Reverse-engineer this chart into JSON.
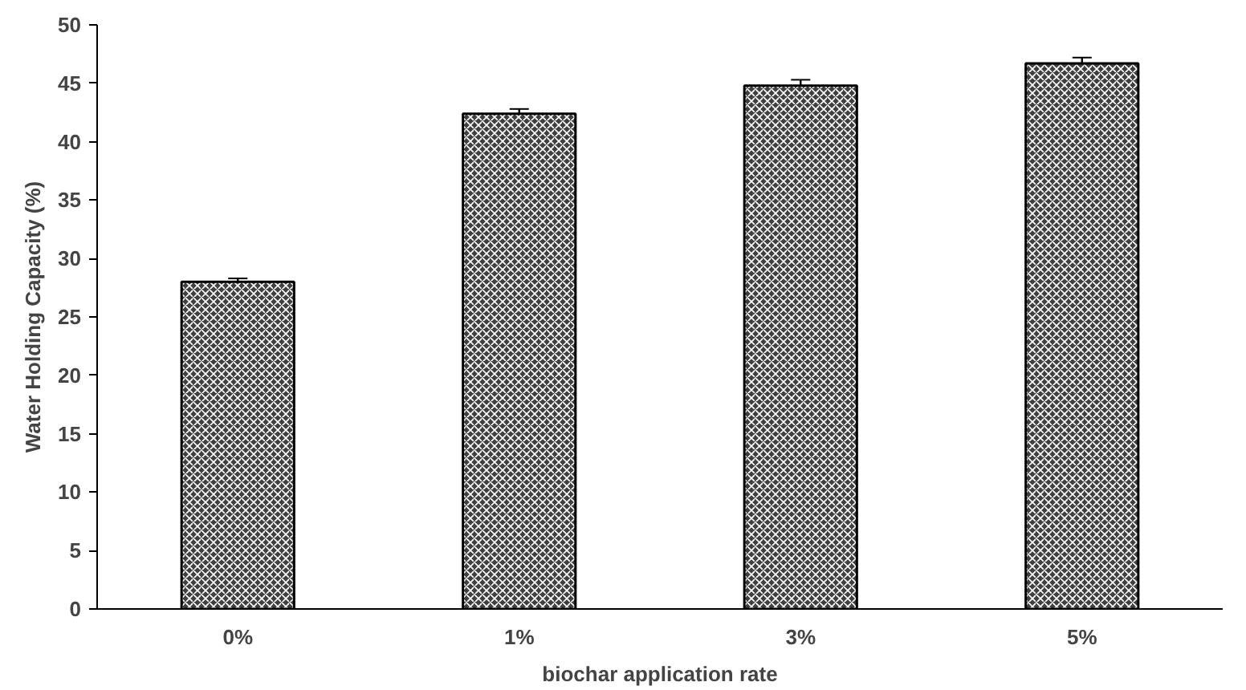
{
  "chart_data": {
    "type": "bar",
    "xlabel": "biochar application rate",
    "ylabel": "Water Holding Capacity (%)",
    "categories": [
      "0%",
      "1%",
      "3%",
      "5%"
    ],
    "values": [
      28,
      42.4,
      44.8,
      46.7
    ],
    "errors": [
      0.3,
      0.4,
      0.5,
      0.5
    ],
    "color": "#404040",
    "ylim": [
      0,
      50
    ],
    "yticks": [
      0,
      5,
      10,
      15,
      20,
      25,
      30,
      35,
      40,
      45,
      50
    ],
    "grid": false
  }
}
